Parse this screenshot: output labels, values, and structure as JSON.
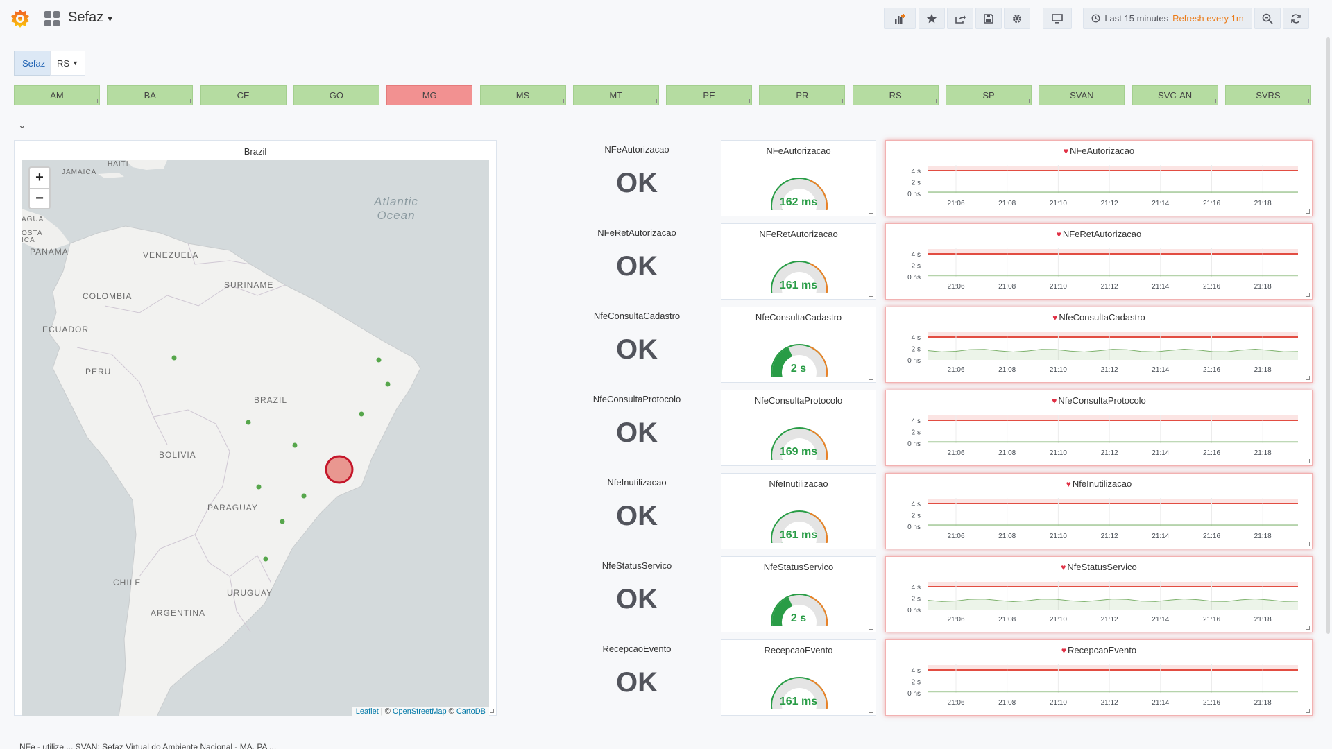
{
  "navbar": {
    "dashboard_title": "Sefaz",
    "time_range": "Last 15 minutes",
    "refresh": "Refresh every 1m",
    "buttons": [
      "add-panel",
      "star",
      "share",
      "save",
      "settings",
      "tv-mode",
      "zoom-out",
      "refresh"
    ]
  },
  "variables": {
    "label": "Sefaz",
    "selected": "RS"
  },
  "states": [
    {
      "name": "AM",
      "status": "ok"
    },
    {
      "name": "BA",
      "status": "ok"
    },
    {
      "name": "CE",
      "status": "ok"
    },
    {
      "name": "GO",
      "status": "ok"
    },
    {
      "name": "MG",
      "status": "alert"
    },
    {
      "name": "MS",
      "status": "ok"
    },
    {
      "name": "MT",
      "status": "ok"
    },
    {
      "name": "PE",
      "status": "ok"
    },
    {
      "name": "PR",
      "status": "ok"
    },
    {
      "name": "RS",
      "status": "ok"
    },
    {
      "name": "SP",
      "status": "ok"
    },
    {
      "name": "SVAN",
      "status": "ok"
    },
    {
      "name": "SVC-AN",
      "status": "ok"
    },
    {
      "name": "SVRS",
      "status": "ok"
    }
  ],
  "map": {
    "title": "Brazil",
    "labels": [
      "HAITI",
      "JAMAICA",
      "VENEZUELA",
      "SURINAME",
      "COLOMBIA",
      "ECUADOR",
      "PERU",
      "BRAZIL",
      "BOLIVIA",
      "PARAGUAY",
      "CHILE",
      "URUGUAY",
      "ARGENTINA",
      "PANAMA",
      "AGUA",
      "OSTA",
      "ICA"
    ],
    "ocean": "Atlantic Ocean",
    "zoom_in": "+",
    "zoom_out": "−",
    "attribution": {
      "leaflet": "Leaflet",
      "sep": " | © ",
      "osm": "OpenStreetMap",
      "mid": " © ",
      "carto": "CartoDB"
    },
    "colors": {
      "ok_point": "#56a64b",
      "alert_point": "#e24d42"
    }
  },
  "services": [
    {
      "name": "NFeAutorizacao",
      "status": "OK",
      "gauge": "162 ms",
      "gauge_fraction": 0.06
    },
    {
      "name": "NFeRetAutorizacao",
      "status": "OK",
      "gauge": "161 ms",
      "gauge_fraction": 0.06
    },
    {
      "name": "NfeConsultaCadastro",
      "status": "OK",
      "gauge": "2 s",
      "gauge_fraction": 0.4
    },
    {
      "name": "NfeConsultaProtocolo",
      "status": "OK",
      "gauge": "169 ms",
      "gauge_fraction": 0.06
    },
    {
      "name": "NfeInutilizacao",
      "status": "OK",
      "gauge": "161 ms",
      "gauge_fraction": 0.06
    },
    {
      "name": "NfeStatusServico",
      "status": "OK",
      "gauge": "2 s",
      "gauge_fraction": 0.4
    },
    {
      "name": "RecepcaoEvento",
      "status": "OK",
      "gauge": "161 ms",
      "gauge_fraction": 0.06
    }
  ],
  "graph": {
    "y_ticks": [
      "4 s",
      "2 s",
      "0 ns"
    ],
    "x_ticks": [
      "21:06",
      "21:08",
      "21:10",
      "21:12",
      "21:14",
      "21:16",
      "21:18"
    ],
    "threshold_color": "#e24d42",
    "series_color": "#7eb26d"
  },
  "footer": {
    "text": "NFe - utilize ... SVAN: Sefaz Virtual do Ambiente Nacional - MA, PA ..."
  }
}
